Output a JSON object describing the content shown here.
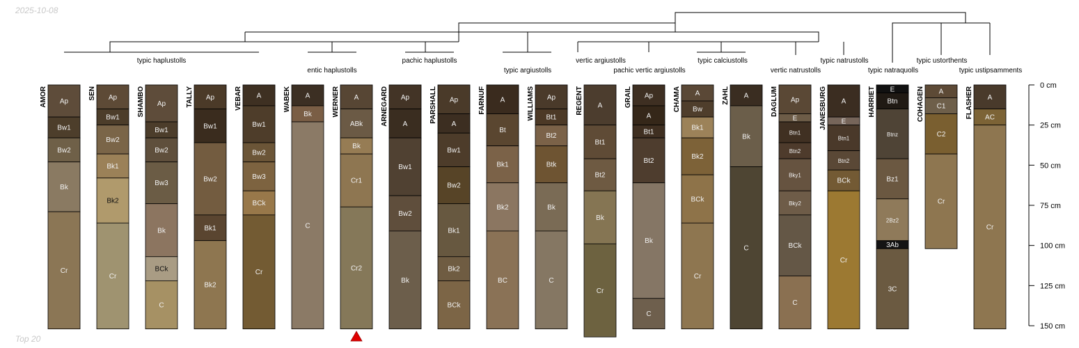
{
  "header": {
    "date": "2025-10-08"
  },
  "footer": {
    "caption": "Top 20"
  },
  "chart_data": {
    "type": "soil-profile-sketch",
    "depth_unit": "cm",
    "depth_ticks": [
      0,
      25,
      50,
      75,
      100,
      125,
      150
    ],
    "depth_tick_labels": [
      "0 cm",
      "25 cm",
      "50 cm",
      "75 cm",
      "100 cm",
      "125 cm",
      "150 cm"
    ],
    "marked_profile": "WERNER",
    "profiles": [
      {
        "name": "AMOR",
        "horizons": [
          {
            "label": "Ap",
            "top": 0,
            "bottom": 20,
            "color": "#5E4C3A"
          },
          {
            "label": "Bw1",
            "top": 20,
            "bottom": 33,
            "color": "#4D3E2B"
          },
          {
            "label": "Bw2",
            "top": 33,
            "bottom": 48,
            "color": "#6F6048"
          },
          {
            "label": "Bk",
            "top": 48,
            "bottom": 79,
            "color": "#8A7A62"
          },
          {
            "label": "Cr",
            "top": 79,
            "bottom": 152,
            "color": "#8B7655"
          }
        ]
      },
      {
        "name": "SEN",
        "horizons": [
          {
            "label": "Ap",
            "top": 0,
            "bottom": 15,
            "color": "#5D4A36"
          },
          {
            "label": "Bw1",
            "top": 15,
            "bottom": 25,
            "color": "#4C3D2A"
          },
          {
            "label": "Bw2",
            "top": 25,
            "bottom": 43,
            "color": "#7A6548"
          },
          {
            "label": "Bk1",
            "top": 43,
            "bottom": 58,
            "color": "#9B8158"
          },
          {
            "label": "Bk2",
            "top": 58,
            "bottom": 86,
            "color": "#B09A6C"
          },
          {
            "label": "Cr",
            "top": 86,
            "bottom": 152,
            "color": "#9F9370"
          }
        ]
      },
      {
        "name": "SHAMBO",
        "horizons": [
          {
            "label": "Ap",
            "top": 0,
            "bottom": 23,
            "color": "#5E4C3A"
          },
          {
            "label": "Bw1",
            "top": 23,
            "bottom": 33,
            "color": "#4C3D2B"
          },
          {
            "label": "Bw2",
            "top": 33,
            "bottom": 48,
            "color": "#5F4F3C"
          },
          {
            "label": "Bw3",
            "top": 48,
            "bottom": 74,
            "color": "#6B5C45"
          },
          {
            "label": "Bk",
            "top": 74,
            "bottom": 107,
            "color": "#8C7560"
          },
          {
            "label": "BCk",
            "top": 107,
            "bottom": 122,
            "color": "#A99C84"
          },
          {
            "label": "C",
            "top": 122,
            "bottom": 152,
            "color": "#A69164"
          }
        ]
      },
      {
        "name": "TALLY",
        "horizons": [
          {
            "label": "Ap",
            "top": 0,
            "bottom": 15,
            "color": "#4B3A28"
          },
          {
            "label": "Bw1",
            "top": 15,
            "bottom": 36,
            "color": "#3A2C1E"
          },
          {
            "label": "Bw2",
            "top": 36,
            "bottom": 81,
            "color": "#735C40"
          },
          {
            "label": "Bk1",
            "top": 81,
            "bottom": 97,
            "color": "#5A4530"
          },
          {
            "label": "Bk2",
            "top": 97,
            "bottom": 152,
            "color": "#8E7650"
          }
        ]
      },
      {
        "name": "VEBAR",
        "horizons": [
          {
            "label": "A",
            "top": 0,
            "bottom": 13,
            "color": "#3E3022"
          },
          {
            "label": "Bw1",
            "top": 13,
            "bottom": 36,
            "color": "#4E3D2A"
          },
          {
            "label": "Bw2",
            "top": 36,
            "bottom": 48,
            "color": "#6B5537"
          },
          {
            "label": "Bw3",
            "top": 48,
            "bottom": 66,
            "color": "#7D6340"
          },
          {
            "label": "BCk",
            "top": 66,
            "bottom": 81,
            "color": "#98784A"
          },
          {
            "label": "Cr",
            "top": 81,
            "bottom": 152,
            "color": "#735B33"
          }
        ]
      },
      {
        "name": "WABEK",
        "horizons": [
          {
            "label": "A",
            "top": 0,
            "bottom": 13,
            "color": "#3C2F23"
          },
          {
            "label": "Bk",
            "top": 13,
            "bottom": 23,
            "color": "#7A5E45"
          },
          {
            "label": "C",
            "top": 23,
            "bottom": 152,
            "color": "#8B7A66"
          }
        ]
      },
      {
        "name": "WERNER",
        "horizons": [
          {
            "label": "A",
            "top": 0,
            "bottom": 15,
            "color": "#574634"
          },
          {
            "label": "ABk",
            "top": 15,
            "bottom": 33,
            "color": "#6B5A45"
          },
          {
            "label": "Bk",
            "top": 33,
            "bottom": 43,
            "color": "#967C54"
          },
          {
            "label": "Cr1",
            "top": 43,
            "bottom": 76,
            "color": "#8E7651"
          },
          {
            "label": "Cr2",
            "top": 76,
            "bottom": 152,
            "color": "#857859"
          }
        ]
      },
      {
        "name": "ARNEGARD",
        "horizons": [
          {
            "label": "Ap",
            "top": 0,
            "bottom": 15,
            "color": "#433426"
          },
          {
            "label": "A",
            "top": 15,
            "bottom": 33,
            "color": "#3A2D20"
          },
          {
            "label": "Bw1",
            "top": 33,
            "bottom": 69,
            "color": "#504132"
          },
          {
            "label": "Bw2",
            "top": 69,
            "bottom": 91,
            "color": "#5F4E3C"
          },
          {
            "label": "Bk",
            "top": 91,
            "bottom": 152,
            "color": "#6C5E4B"
          }
        ]
      },
      {
        "name": "PARSHALL",
        "horizons": [
          {
            "label": "Ap",
            "top": 0,
            "bottom": 18,
            "color": "#4A3A29"
          },
          {
            "label": "A",
            "top": 18,
            "bottom": 30,
            "color": "#3C2E21"
          },
          {
            "label": "Bw1",
            "top": 30,
            "bottom": 51,
            "color": "#4D3C2A"
          },
          {
            "label": "Bw2",
            "top": 51,
            "bottom": 74,
            "color": "#574427"
          },
          {
            "label": "Bk1",
            "top": 74,
            "bottom": 107,
            "color": "#675840"
          },
          {
            "label": "Bk2",
            "top": 107,
            "bottom": 122,
            "color": "#6F5C42"
          },
          {
            "label": "BCk",
            "top": 122,
            "bottom": 152,
            "color": "#7C6546"
          }
        ]
      },
      {
        "name": "FARNUF",
        "horizons": [
          {
            "label": "A",
            "top": 0,
            "bottom": 18,
            "color": "#3A2B1E"
          },
          {
            "label": "Bt",
            "top": 18,
            "bottom": 38,
            "color": "#5A4630"
          },
          {
            "label": "Bk1",
            "top": 38,
            "bottom": 61,
            "color": "#7B6248"
          },
          {
            "label": "Bk2",
            "top": 61,
            "bottom": 91,
            "color": "#8B7661"
          },
          {
            "label": "BC",
            "top": 91,
            "bottom": 152,
            "color": "#8A7256"
          }
        ]
      },
      {
        "name": "WILLIAMS",
        "horizons": [
          {
            "label": "Ap",
            "top": 0,
            "bottom": 15,
            "color": "#4A3A2A"
          },
          {
            "label": "Bt1",
            "top": 15,
            "bottom": 25,
            "color": "#4C3926"
          },
          {
            "label": "Bt2",
            "top": 25,
            "bottom": 38,
            "color": "#7B6248"
          },
          {
            "label": "Btk",
            "top": 38,
            "bottom": 61,
            "color": "#6E5432"
          },
          {
            "label": "Bk",
            "top": 61,
            "bottom": 91,
            "color": "#7A6B55"
          },
          {
            "label": "C",
            "top": 91,
            "bottom": 152,
            "color": "#857763"
          }
        ]
      },
      {
        "name": "REGENT",
        "horizons": [
          {
            "label": "A",
            "top": 0,
            "bottom": 25,
            "color": "#4C3D2E"
          },
          {
            "label": "Bt1",
            "top": 25,
            "bottom": 46,
            "color": "#5F4B36"
          },
          {
            "label": "Bt2",
            "top": 46,
            "bottom": 66,
            "color": "#6E5A42"
          },
          {
            "label": "Bk",
            "top": 66,
            "bottom": 99,
            "color": "#857553"
          },
          {
            "label": "Cr",
            "top": 99,
            "bottom": 157,
            "color": "#6D6240"
          }
        ]
      },
      {
        "name": "GRAIL",
        "horizons": [
          {
            "label": "Ap",
            "top": 0,
            "bottom": 13,
            "color": "#3E2F22"
          },
          {
            "label": "A",
            "top": 13,
            "bottom": 25,
            "color": "#352719"
          },
          {
            "label": "Bt1",
            "top": 25,
            "bottom": 33,
            "color": "#3F2F21"
          },
          {
            "label": "Bt2",
            "top": 33,
            "bottom": 61,
            "color": "#4E3D2E"
          },
          {
            "label": "Bk",
            "top": 61,
            "bottom": 133,
            "color": "#857665"
          },
          {
            "label": "C",
            "top": 133,
            "bottom": 152,
            "color": "#6E5F4D"
          }
        ]
      },
      {
        "name": "CHAMA",
        "horizons": [
          {
            "label": "A",
            "top": 0,
            "bottom": 10,
            "color": "#5A4836"
          },
          {
            "label": "Bw",
            "top": 10,
            "bottom": 20,
            "color": "#4F3E2C"
          },
          {
            "label": "Bk1",
            "top": 20,
            "bottom": 33,
            "color": "#9C8259"
          },
          {
            "label": "Bk2",
            "top": 33,
            "bottom": 56,
            "color": "#7D6238"
          },
          {
            "label": "BCk",
            "top": 56,
            "bottom": 86,
            "color": "#8E7349"
          },
          {
            "label": "Cr",
            "top": 86,
            "bottom": 152,
            "color": "#8E7650"
          }
        ]
      },
      {
        "name": "ZAHL",
        "horizons": [
          {
            "label": "A",
            "top": 0,
            "bottom": 13,
            "color": "#3A2D21"
          },
          {
            "label": "Bk",
            "top": 13,
            "bottom": 51,
            "color": "#6B5E4A"
          },
          {
            "label": "C",
            "top": 51,
            "bottom": 152,
            "color": "#4E4533"
          }
        ]
      },
      {
        "name": "DAGLUM",
        "horizons": [
          {
            "label": "Ap",
            "top": 0,
            "bottom": 18,
            "color": "#5A4835"
          },
          {
            "label": "E",
            "top": 18,
            "bottom": 23,
            "color": "#6D5C47"
          },
          {
            "label": "Btn1",
            "top": 23,
            "bottom": 36,
            "color": "#403022"
          },
          {
            "label": "Btn2",
            "top": 36,
            "bottom": 46,
            "color": "#4E3B2C"
          },
          {
            "label": "Bky1",
            "top": 46,
            "bottom": 66,
            "color": "#665340"
          },
          {
            "label": "Bky2",
            "top": 66,
            "bottom": 81,
            "color": "#6E5C48"
          },
          {
            "label": "BCk",
            "top": 81,
            "bottom": 119,
            "color": "#645746"
          },
          {
            "label": "C",
            "top": 119,
            "bottom": 152,
            "color": "#8A7051"
          }
        ]
      },
      {
        "name": "JANESBURG",
        "horizons": [
          {
            "label": "A",
            "top": 0,
            "bottom": 20,
            "color": "#3B2D21"
          },
          {
            "label": "E",
            "top": 20,
            "bottom": 25,
            "color": "#76655A"
          },
          {
            "label": "Btn1",
            "top": 25,
            "bottom": 41,
            "color": "#4A392A"
          },
          {
            "label": "Btn2",
            "top": 41,
            "bottom": 53,
            "color": "#5A4836"
          },
          {
            "label": "BCk",
            "top": 53,
            "bottom": 66,
            "color": "#735A34"
          },
          {
            "label": "Cr",
            "top": 66,
            "bottom": 152,
            "color": "#9C7932"
          }
        ]
      },
      {
        "name": "HARRIET",
        "horizons": [
          {
            "label": "E",
            "top": 0,
            "bottom": 5,
            "color": "#111111"
          },
          {
            "label": "Btn",
            "top": 5,
            "bottom": 15,
            "color": "#201A14"
          },
          {
            "label": "Btnz",
            "top": 15,
            "bottom": 46,
            "color": "#4F4436"
          },
          {
            "label": "Bz1",
            "top": 46,
            "bottom": 71,
            "color": "#6B5841"
          },
          {
            "label": "2Bz2",
            "top": 71,
            "bottom": 97,
            "color": "#8F7A5A"
          },
          {
            "label": "3Ab",
            "top": 97,
            "bottom": 102,
            "color": "#141414"
          },
          {
            "label": "3C",
            "top": 102,
            "bottom": 152,
            "color": "#6B5A41"
          }
        ]
      },
      {
        "name": "COHAGEN",
        "horizons": [
          {
            "label": "A",
            "top": 0,
            "bottom": 8,
            "color": "#5D4A36"
          },
          {
            "label": "C1",
            "top": 8,
            "bottom": 18,
            "color": "#6E5F4A"
          },
          {
            "label": "C2",
            "top": 18,
            "bottom": 43,
            "color": "#7A5F30"
          },
          {
            "label": "Cr",
            "top": 43,
            "bottom": 102,
            "color": "#8E7650"
          }
        ]
      },
      {
        "name": "FLASHER",
        "horizons": [
          {
            "label": "A",
            "top": 0,
            "bottom": 15,
            "color": "#493A2B"
          },
          {
            "label": "AC",
            "top": 15,
            "bottom": 25,
            "color": "#7C6336"
          },
          {
            "label": "Cr",
            "top": 25,
            "bottom": 152,
            "color": "#8E7650"
          }
        ]
      }
    ],
    "dendrogram": {
      "group_labels": [
        "typic haplustolls",
        "entic haplustolls",
        "pachic haplustolls",
        "typic argiustolls",
        "vertic argiustolls",
        "pachic vertic argiustolls",
        "typic calciustolls",
        "vertic natrustolls",
        "typic natrustolls",
        "typic natraquolls",
        "typic ustorthents",
        "typic ustipsamments"
      ]
    }
  }
}
